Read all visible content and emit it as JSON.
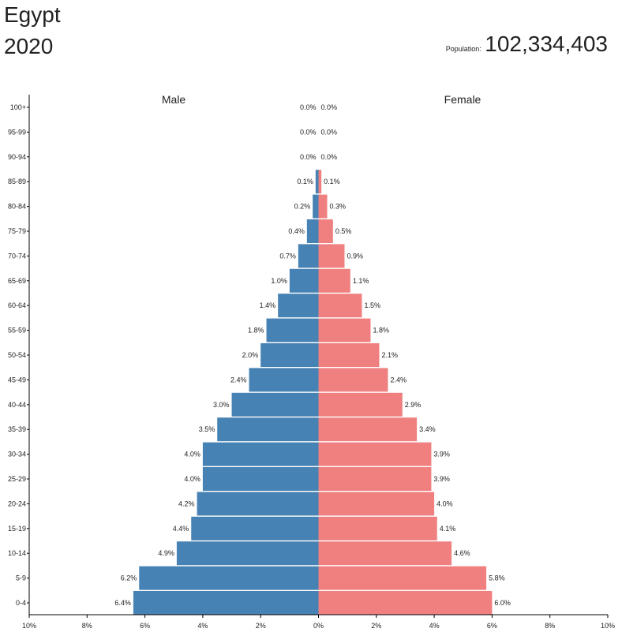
{
  "header": {
    "country": "Egypt",
    "year": "2020",
    "population_label": "Population:",
    "population_value": "102,334,403"
  },
  "chart_data": {
    "type": "bar",
    "orientation": "horizontal-mirrored",
    "categories": [
      "0-4",
      "5-9",
      "10-14",
      "15-19",
      "20-24",
      "25-29",
      "30-34",
      "35-39",
      "40-44",
      "45-49",
      "50-54",
      "55-59",
      "60-64",
      "65-69",
      "70-74",
      "75-79",
      "80-84",
      "85-89",
      "90-94",
      "95-99",
      "100+"
    ],
    "series": [
      {
        "name": "Male",
        "color": "#4682b4",
        "values": [
          6.4,
          6.2,
          4.9,
          4.4,
          4.2,
          4.0,
          4.0,
          3.5,
          3.0,
          2.4,
          2.0,
          1.8,
          1.4,
          1.0,
          0.7,
          0.4,
          0.2,
          0.1,
          0.0,
          0.0,
          0.0
        ],
        "labels": [
          "6.4%",
          "6.2%",
          "4.9%",
          "4.4%",
          "4.2%",
          "4.0%",
          "4.0%",
          "3.5%",
          "3.0%",
          "2.4%",
          "2.0%",
          "1.8%",
          "1.4%",
          "1.0%",
          "0.7%",
          "0.4%",
          "0.2%",
          "0.1%",
          "0.0%",
          "0.0%",
          "0.0%"
        ]
      },
      {
        "name": "Female",
        "color": "#f08080",
        "values": [
          6.0,
          5.8,
          4.6,
          4.1,
          4.0,
          3.9,
          3.9,
          3.4,
          2.9,
          2.4,
          2.1,
          1.8,
          1.5,
          1.1,
          0.9,
          0.5,
          0.3,
          0.1,
          0.0,
          0.0,
          0.0
        ],
        "labels": [
          "6.0%",
          "5.8%",
          "4.6%",
          "4.1%",
          "4.0%",
          "3.9%",
          "3.9%",
          "3.4%",
          "2.9%",
          "2.4%",
          "2.1%",
          "1.8%",
          "1.5%",
          "1.1%",
          "0.9%",
          "0.5%",
          "0.3%",
          "0.1%",
          "0.0%",
          "0.0%",
          "0.0%"
        ]
      }
    ],
    "xlim": [
      -10,
      10
    ],
    "x_ticks": [
      "10%",
      "8%",
      "6%",
      "4%",
      "2%",
      "0%",
      "2%",
      "4%",
      "6%",
      "8%",
      "10%"
    ],
    "grid": false
  }
}
